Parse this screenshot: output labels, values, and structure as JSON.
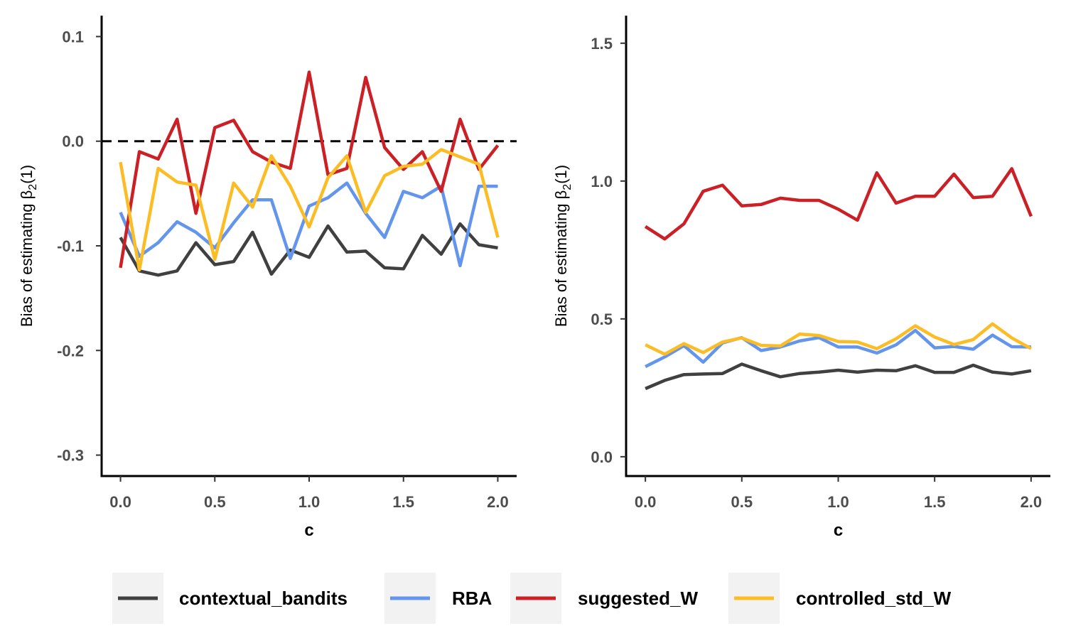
{
  "legend": {
    "items": [
      {
        "label": "contextual_bandits",
        "color": "#404040"
      },
      {
        "label": "RBA",
        "color": "#6495ED"
      },
      {
        "label": "suggested_W",
        "color": "#CC2027"
      },
      {
        "label": "controlled_std_W",
        "color": "#FBBC24"
      }
    ]
  },
  "chart_data": [
    {
      "type": "line",
      "xlabel": "c",
      "ylabel": "Bias of estimating",
      "ylabel_symbol": "β",
      "ylabel_subscript": "2",
      "ylabel_suffix": "(1)",
      "xlim": [
        -0.1,
        2.1
      ],
      "ylim": [
        -0.32,
        0.12
      ],
      "xticks": [
        0.0,
        0.5,
        1.0,
        1.5,
        2.0
      ],
      "xtick_labels": [
        "0.0",
        "0.5",
        "1.0",
        "1.5",
        "2.0"
      ],
      "yticks": [
        -0.3,
        -0.2,
        -0.1,
        0.0,
        0.1
      ],
      "ytick_labels": [
        "-0.3",
        "-0.2",
        "-0.1",
        "0.0",
        "0.1"
      ],
      "reference_line": {
        "y": 0.0,
        "style": "dashed"
      },
      "x": [
        0.0,
        0.1,
        0.2,
        0.3,
        0.4,
        0.5,
        0.6,
        0.7,
        0.8,
        0.9,
        1.0,
        1.1,
        1.2,
        1.3,
        1.4,
        1.5,
        1.6,
        1.7,
        1.8,
        1.9,
        2.0
      ],
      "series": [
        {
          "name": "contextual_bandits",
          "color": "#404040",
          "values": [
            -0.092,
            -0.124,
            -0.128,
            -0.124,
            -0.097,
            -0.118,
            -0.115,
            -0.087,
            -0.127,
            -0.104,
            -0.111,
            -0.081,
            -0.106,
            -0.105,
            -0.121,
            -0.122,
            -0.09,
            -0.108,
            -0.079,
            -0.099,
            -0.102
          ]
        },
        {
          "name": "RBA",
          "color": "#6495ED",
          "values": [
            -0.068,
            -0.11,
            -0.097,
            -0.077,
            -0.087,
            -0.102,
            -0.078,
            -0.056,
            -0.056,
            -0.112,
            -0.062,
            -0.054,
            -0.04,
            -0.069,
            -0.092,
            -0.048,
            -0.054,
            -0.043,
            -0.119,
            -0.043,
            -0.043
          ]
        },
        {
          "name": "suggested_W",
          "color": "#CC2027",
          "values": [
            -0.121,
            -0.01,
            -0.017,
            0.021,
            -0.069,
            0.013,
            0.02,
            -0.01,
            -0.02,
            -0.026,
            0.066,
            -0.032,
            -0.026,
            0.061,
            -0.006,
            -0.027,
            -0.01,
            -0.048,
            0.021,
            -0.027,
            -0.004
          ]
        },
        {
          "name": "controlled_std_W",
          "color": "#FBBC24",
          "values": [
            -0.02,
            -0.123,
            -0.026,
            -0.039,
            -0.042,
            -0.113,
            -0.04,
            -0.063,
            -0.014,
            -0.043,
            -0.082,
            -0.035,
            -0.014,
            -0.068,
            -0.033,
            -0.024,
            -0.022,
            -0.008,
            -0.015,
            -0.022,
            -0.092
          ]
        }
      ]
    },
    {
      "type": "line",
      "xlabel": "c",
      "ylabel": "Bias of estimating",
      "ylabel_symbol": "β",
      "ylabel_subscript": "2",
      "ylabel_suffix": "(1)",
      "xlim": [
        -0.1,
        2.1
      ],
      "ylim": [
        -0.07,
        1.6
      ],
      "xticks": [
        0.0,
        0.5,
        1.0,
        1.5,
        2.0
      ],
      "xtick_labels": [
        "0.0",
        "0.5",
        "1.0",
        "1.5",
        "2.0"
      ],
      "yticks": [
        0.0,
        0.5,
        1.0,
        1.5
      ],
      "ytick_labels": [
        "0.0",
        "0.5",
        "1.0",
        "1.5"
      ],
      "x": [
        0.0,
        0.1,
        0.2,
        0.3,
        0.4,
        0.5,
        0.6,
        0.7,
        0.8,
        0.9,
        1.0,
        1.1,
        1.2,
        1.3,
        1.4,
        1.5,
        1.6,
        1.7,
        1.8,
        1.9,
        2.0
      ],
      "series": [
        {
          "name": "contextual_bandits",
          "color": "#404040",
          "values": [
            0.247,
            0.277,
            0.298,
            0.3,
            0.302,
            0.336,
            0.312,
            0.29,
            0.302,
            0.307,
            0.314,
            0.307,
            0.314,
            0.312,
            0.33,
            0.306,
            0.306,
            0.332,
            0.307,
            0.3,
            0.312
          ]
        },
        {
          "name": "RBA",
          "color": "#6495ED",
          "values": [
            0.327,
            0.362,
            0.403,
            0.343,
            0.413,
            0.432,
            0.385,
            0.398,
            0.42,
            0.432,
            0.398,
            0.398,
            0.376,
            0.406,
            0.458,
            0.395,
            0.4,
            0.39,
            0.441,
            0.399,
            0.398
          ]
        },
        {
          "name": "suggested_W",
          "color": "#CC2027",
          "values": [
            0.835,
            0.79,
            0.845,
            0.963,
            0.985,
            0.91,
            0.915,
            0.938,
            0.93,
            0.93,
            0.898,
            0.858,
            1.03,
            0.92,
            0.945,
            0.945,
            1.025,
            0.94,
            0.945,
            1.045,
            0.872
          ]
        },
        {
          "name": "controlled_std_W",
          "color": "#FBBC24",
          "values": [
            0.406,
            0.372,
            0.41,
            0.378,
            0.416,
            0.431,
            0.404,
            0.402,
            0.445,
            0.44,
            0.418,
            0.416,
            0.392,
            0.428,
            0.475,
            0.434,
            0.407,
            0.425,
            0.482,
            0.431,
            0.392
          ]
        }
      ]
    }
  ]
}
